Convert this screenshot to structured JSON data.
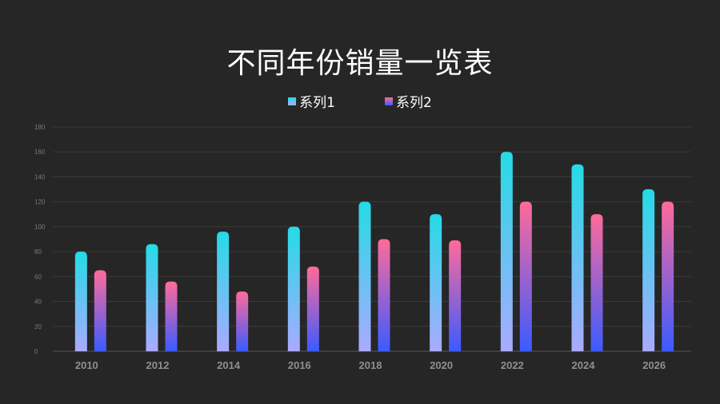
{
  "chart_data": {
    "type": "bar",
    "title": "不同年份销量一览表",
    "categories": [
      "2010",
      "2012",
      "2014",
      "2016",
      "2018",
      "2020",
      "2022",
      "2024",
      "2026"
    ],
    "series": [
      {
        "name": "系列1",
        "values": [
          80,
          86,
          96,
          100,
          120,
          110,
          160,
          150,
          130
        ],
        "colors": [
          "#24dbe6",
          "#aaaaff"
        ]
      },
      {
        "name": "系列2",
        "values": [
          65,
          56,
          48,
          68,
          90,
          89,
          120,
          110,
          120
        ],
        "colors": [
          "#ff6b9a",
          "#3b5bff"
        ]
      }
    ],
    "yticks": [
      "0",
      "20",
      "40",
      "60",
      "80",
      "100",
      "120",
      "140",
      "160",
      "180"
    ],
    "ylim": [
      0,
      180
    ],
    "grid": true,
    "legend_position": "top"
  }
}
